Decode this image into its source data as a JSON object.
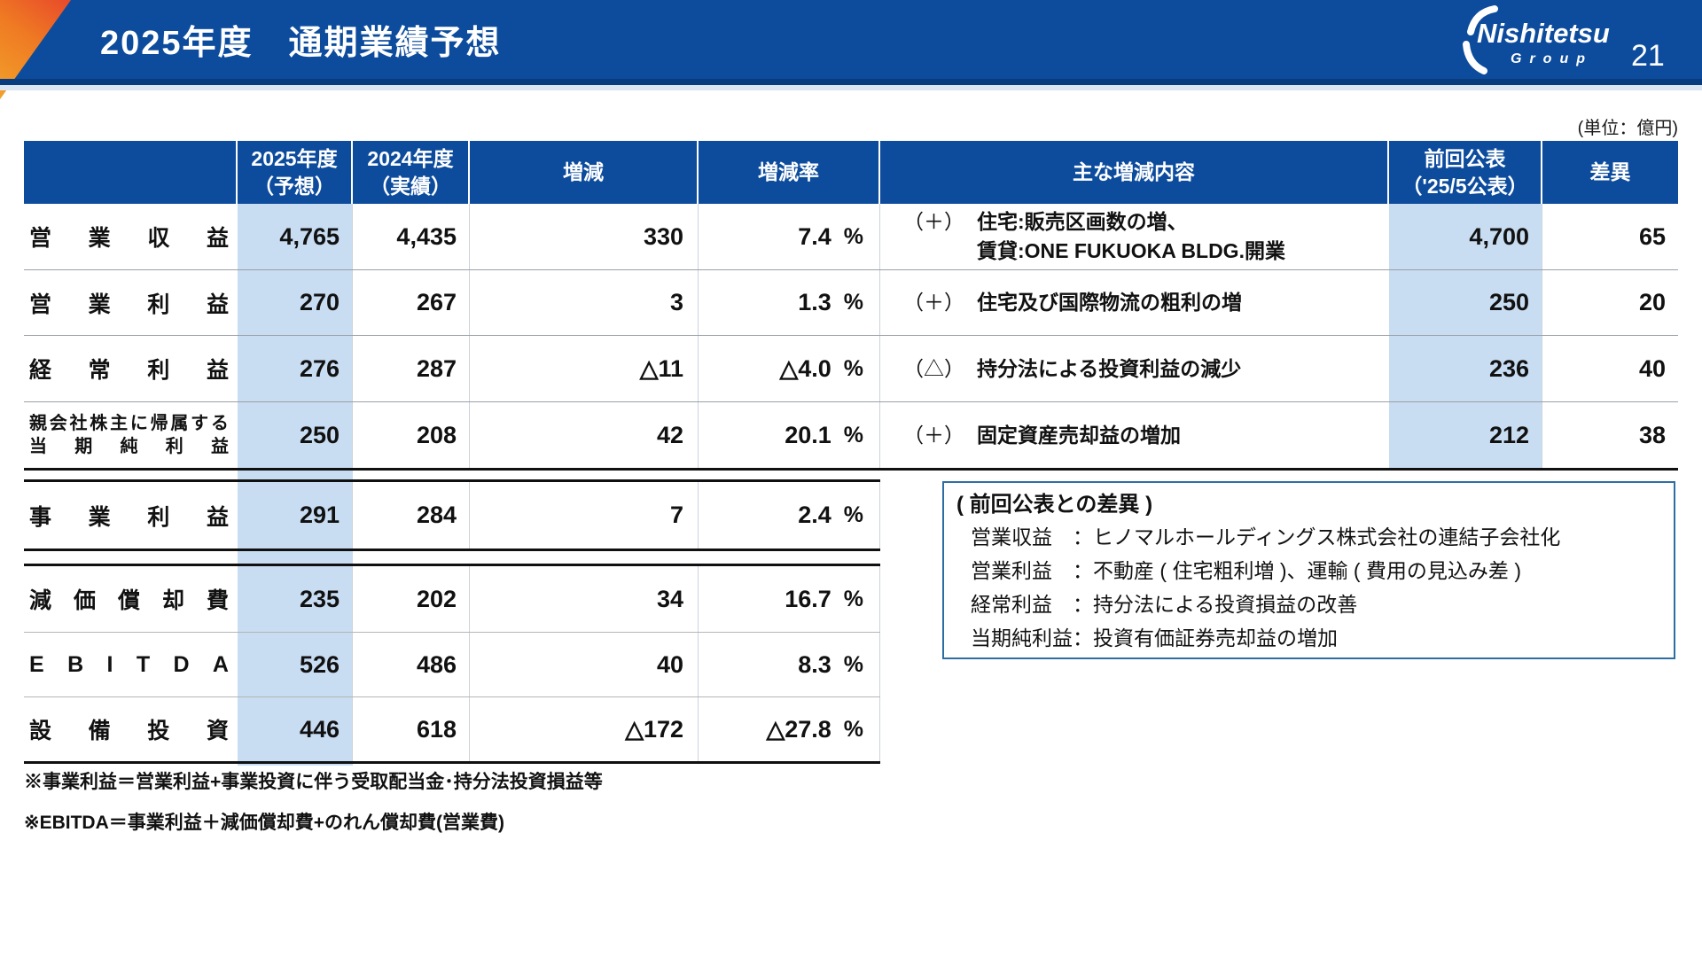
{
  "page": {
    "title": "2025年度　通期業績予想",
    "page_number": "21",
    "unit_note": "(単位：億円)"
  },
  "logo": {
    "name": "Nishitetsu",
    "group": "Group"
  },
  "header": {
    "forecast_l1": "2025年度",
    "forecast_l2": "（予想）",
    "actual_l1": "2024年度",
    "actual_l2": "（実績）",
    "change": "増減",
    "change_rate": "増減率",
    "content": "主な増減内容",
    "previous_l1": "前回公表",
    "previous_l2": "（'25/5公表）",
    "diff": "差異"
  },
  "rows": [
    {
      "label": "営業収益",
      "v2025": "4,765",
      "v2024": "4,435",
      "change": "330",
      "rate": "7.4",
      "prefix": "（＋）",
      "line1": "住宅:販売区画数の増、",
      "line2": "賃貸:ONE FUKUOKA BLDG.開業",
      "previous": "4,700",
      "diff": "65"
    },
    {
      "label": "営業利益",
      "v2025": "270",
      "v2024": "267",
      "change": "3",
      "rate": "1.3",
      "prefix": "（＋）",
      "line1": "住宅及び国際物流の粗利の増",
      "previous": "250",
      "diff": "20"
    },
    {
      "label": "経常利益",
      "v2025": "276",
      "v2024": "287",
      "change": "△11",
      "rate": "△4.0",
      "prefix": "（△）",
      "line1": "持分法による投資利益の減少",
      "previous": "236",
      "diff": "40"
    },
    {
      "label_l1": "親会社株主に帰属する",
      "label_l2": "当期純利益",
      "v2025": "250",
      "v2024": "208",
      "change": "42",
      "rate": "20.1",
      "prefix": "（＋）",
      "line1": "固定資産売却益の増加",
      "previous": "212",
      "diff": "38"
    }
  ],
  "sub_rows": [
    {
      "label": "事業利益",
      "v2025": "291",
      "v2024": "284",
      "change": "7",
      "rate": "2.4"
    },
    {
      "label": "減価償却費",
      "v2025": "235",
      "v2024": "202",
      "change": "34",
      "rate": "16.7"
    },
    {
      "label": "EBITDA",
      "v2025": "526",
      "v2024": "486",
      "change": "40",
      "rate": "8.3"
    },
    {
      "label": "設備投資",
      "v2025": "446",
      "v2024": "618",
      "change": "△172",
      "rate": "△27.8"
    }
  ],
  "percent": "%",
  "note_box": {
    "title": "( 前回公表との差異 )",
    "lines": [
      "営業収益　：ヒノマルホールディングス株式会社の連結子会社化",
      "営業利益　：不動産 ( 住宅粗利増 )、運輸 ( 費用の見込み差 )",
      "経常利益　：持分法による投資損益の改善",
      "当期純利益：投資有価証券売却益の増加"
    ]
  },
  "footnotes": [
    "※事業利益＝営業利益+事業投資に伴う受取配当金･持分法投資損益等",
    "※EBITDA＝事業利益＋減価償却費+のれん償却費(営業費)"
  ],
  "colors": {
    "brand_blue": "#0d4c9d",
    "highlight_blue": "#c8dcf2",
    "accent_gradient_start": "#f2a32a",
    "accent_gradient_end": "#e8472b",
    "note_border": "#2e6da4"
  }
}
